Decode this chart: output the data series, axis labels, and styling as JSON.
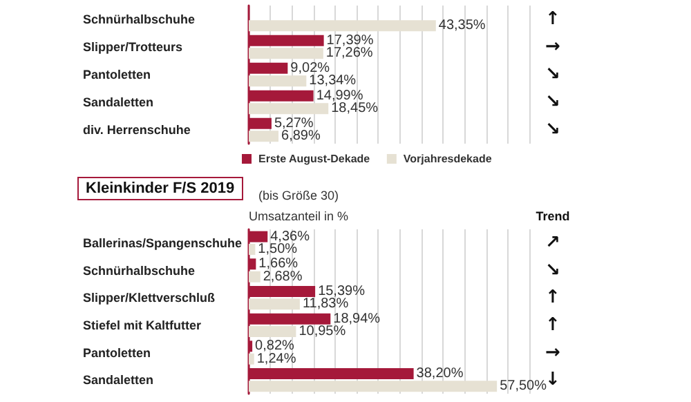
{
  "chart_data": [
    {
      "type": "bar",
      "orientation": "horizontal",
      "categories": [
        "Schnürhalbschuhe",
        "Slipper/Trotteurs",
        "Pantoletten",
        "Sandaletten",
        "div. Herrenschuhe"
      ],
      "series": [
        {
          "name": "Erste August-Dekade",
          "color": "#a5193a",
          "values": [
            null,
            17.39,
            9.02,
            14.99,
            5.27
          ],
          "value_labels": [
            null,
            "17,39%",
            "9,02%",
            "14,99%",
            "5,27%"
          ]
        },
        {
          "name": "Vorjahresdekade",
          "color": "#e6e1d3",
          "values": [
            43.35,
            17.26,
            13.34,
            18.45,
            6.89
          ],
          "value_labels": [
            "43,35%",
            "17,26%",
            "13,34%",
            "18,45%",
            "6,89%"
          ]
        }
      ],
      "xlim": [
        0,
        65
      ],
      "xticks": [
        {
          "value": 0,
          "label": null
        },
        {
          "value": 5,
          "label": null
        },
        {
          "value": 10,
          "label": null
        },
        {
          "value": 15,
          "label": null
        },
        {
          "value": 20,
          "label": null
        },
        {
          "value": 25,
          "label": null
        },
        {
          "value": 30,
          "label": null
        },
        {
          "value": 35,
          "label": null
        },
        {
          "value": 40,
          "label": null
        },
        {
          "value": 45,
          "label": null
        },
        {
          "value": 50,
          "label": null
        },
        {
          "value": 55,
          "label": null
        },
        {
          "value": 60,
          "label": null
        },
        {
          "value": 65,
          "label": null
        }
      ],
      "tick_labels": "y",
      "grid": "x",
      "legend": "bottom",
      "annotations": [
        "↑",
        "→",
        "↘",
        "↘",
        "↘"
      ]
    },
    {
      "type": "bar",
      "orientation": "horizontal",
      "title": "Kleinkinder F/S 2019",
      "subtitle": "(bis Größe 30)",
      "xlabel": "Umsatzanteil in %",
      "categories": [
        "Ballerinas/Spangenschuhe",
        "Schnürhalbschuhe",
        "Slipper/Klettverschluß",
        "Stiefel mit Kaltfutter",
        "Pantoletten",
        "Sandaletten"
      ],
      "series": [
        {
          "color": "#a5193a",
          "values": [
            4.36,
            1.66,
            15.39,
            18.94,
            0.82,
            38.2
          ],
          "value_labels": [
            "4,36%",
            "1,66%",
            "15,39%",
            "18,94%",
            "0,82%",
            "38,20%"
          ]
        },
        {
          "color": "#e6e1d3",
          "values": [
            1.5,
            2.68,
            11.83,
            10.95,
            1.24,
            57.5
          ],
          "value_labels": [
            "1,50%",
            "2,68%",
            "11,83%",
            "10,95%",
            "1,24%",
            "57,50%"
          ]
        }
      ],
      "xlim": [
        0,
        65
      ],
      "xticks": [
        {
          "value": 0,
          "label": null
        },
        {
          "value": 5,
          "label": null
        },
        {
          "value": 10,
          "label": null
        },
        {
          "value": 15,
          "label": null
        },
        {
          "value": 20,
          "label": null
        },
        {
          "value": 25,
          "label": null
        },
        {
          "value": 30,
          "label": null
        },
        {
          "value": 35,
          "label": null
        },
        {
          "value": 40,
          "label": null
        },
        {
          "value": 45,
          "label": null
        },
        {
          "value": 50,
          "label": null
        },
        {
          "value": 55,
          "label": null
        },
        {
          "value": 60,
          "label": null
        },
        {
          "value": 65,
          "label": null
        }
      ],
      "tick_labels": "y",
      "grid": "x",
      "legend": false,
      "annotations": [
        "Trend",
        "↗",
        "↘",
        "↑",
        "↑",
        "→",
        "↓"
      ]
    }
  ]
}
